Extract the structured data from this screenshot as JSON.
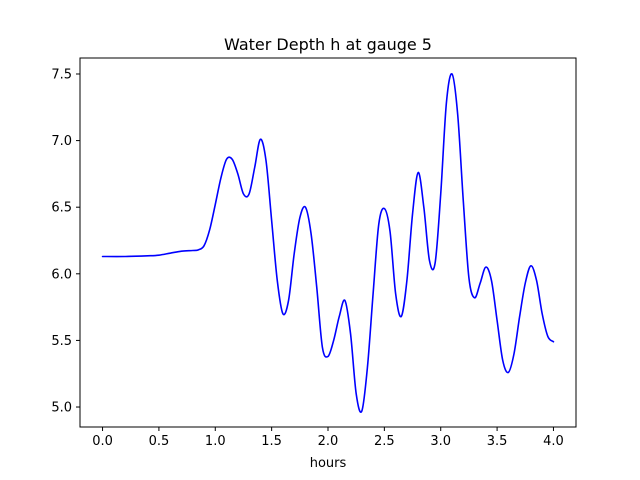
{
  "chart_data": {
    "type": "line",
    "title": "Water Depth h at gauge 5",
    "xlabel": "hours",
    "ylabel": "",
    "xlim": [
      -0.2,
      4.2
    ],
    "ylim": [
      4.85,
      7.62
    ],
    "xticks": [
      0.0,
      0.5,
      1.0,
      1.5,
      2.0,
      2.5,
      3.0,
      3.5,
      4.0
    ],
    "xtick_labels": [
      "0.0",
      "0.5",
      "1.0",
      "1.5",
      "2.0",
      "2.5",
      "3.0",
      "3.5",
      "4.0"
    ],
    "yticks": [
      5.0,
      5.5,
      6.0,
      6.5,
      7.0,
      7.5
    ],
    "ytick_labels": [
      "5.0",
      "5.5",
      "6.0",
      "6.5",
      "7.0",
      "7.5"
    ],
    "grid": false,
    "series": [
      {
        "color": "#0000ff",
        "x": [
          0.0,
          0.2,
          0.4,
          0.5,
          0.6,
          0.7,
          0.8,
          0.85,
          0.9,
          0.95,
          1.0,
          1.05,
          1.1,
          1.15,
          1.2,
          1.25,
          1.3,
          1.35,
          1.4,
          1.45,
          1.5,
          1.55,
          1.6,
          1.65,
          1.7,
          1.75,
          1.8,
          1.85,
          1.9,
          1.95,
          2.0,
          2.05,
          2.1,
          2.15,
          2.2,
          2.25,
          2.3,
          2.35,
          2.4,
          2.45,
          2.5,
          2.55,
          2.6,
          2.65,
          2.7,
          2.75,
          2.8,
          2.85,
          2.9,
          2.95,
          3.0,
          3.05,
          3.1,
          3.15,
          3.2,
          3.25,
          3.3,
          3.35,
          3.4,
          3.45,
          3.5,
          3.55,
          3.6,
          3.65,
          3.7,
          3.75,
          3.8,
          3.85,
          3.9,
          3.95,
          4.0
        ],
        "y": [
          6.13,
          6.13,
          6.135,
          6.14,
          6.155,
          6.17,
          6.175,
          6.18,
          6.21,
          6.33,
          6.52,
          6.72,
          6.86,
          6.86,
          6.75,
          6.6,
          6.6,
          6.8,
          7.01,
          6.85,
          6.4,
          5.95,
          5.7,
          5.8,
          6.15,
          6.42,
          6.5,
          6.3,
          5.9,
          5.45,
          5.38,
          5.5,
          5.68,
          5.8,
          5.55,
          5.1,
          4.97,
          5.3,
          5.85,
          6.37,
          6.49,
          6.32,
          5.85,
          5.68,
          5.95,
          6.45,
          6.76,
          6.5,
          6.1,
          6.08,
          6.6,
          7.28,
          7.5,
          7.2,
          6.55,
          5.97,
          5.82,
          5.93,
          6.05,
          5.95,
          5.65,
          5.35,
          5.26,
          5.4,
          5.68,
          5.93,
          6.06,
          5.95,
          5.7,
          5.53,
          5.49
        ]
      }
    ]
  }
}
